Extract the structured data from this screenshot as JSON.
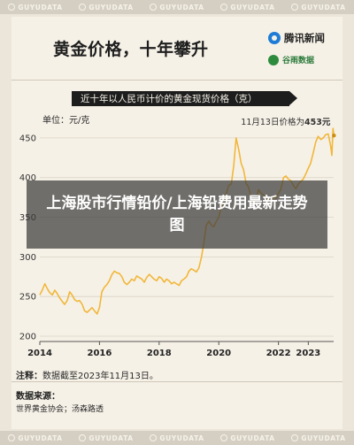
{
  "watermark": {
    "text": "GUYUDATA",
    "repeat": 5
  },
  "header": {
    "title": "黄金价格，十年攀升",
    "logo_primary": "腾讯新闻",
    "logo_secondary": "谷雨数据"
  },
  "chart_data": {
    "type": "line",
    "title": "近十年以人民币计价的黄金现货价格（克）",
    "ylabel": "单位：元/克",
    "xlabel": "",
    "ylim": [
      200,
      480
    ],
    "xlim": [
      2014.0,
      2023.85
    ],
    "yticks": [
      200,
      250,
      300,
      350,
      400,
      450
    ],
    "xticks": [
      {
        "x": 2014,
        "label": "2014"
      },
      {
        "x": 2016,
        "label": "2016"
      },
      {
        "x": 2018,
        "label": "2018"
      },
      {
        "x": 2020,
        "label": "2020"
      },
      {
        "x": 2022,
        "label": "2022"
      },
      {
        "x": 2023,
        "label": "2023"
      }
    ],
    "grid": true,
    "line_color": "#f1b73a",
    "annotation": {
      "x": 2023.86,
      "y": 453,
      "label": "11月13日价格为",
      "value": "453元"
    },
    "series": [
      {
        "values": [
          [
            2014.0,
            252
          ],
          [
            2014.08,
            258
          ],
          [
            2014.17,
            266
          ],
          [
            2014.25,
            260
          ],
          [
            2014.33,
            255
          ],
          [
            2014.42,
            252
          ],
          [
            2014.5,
            258
          ],
          [
            2014.58,
            254
          ],
          [
            2014.67,
            248
          ],
          [
            2014.75,
            244
          ],
          [
            2014.83,
            240
          ],
          [
            2014.92,
            245
          ],
          [
            2015.0,
            256
          ],
          [
            2015.08,
            252
          ],
          [
            2015.17,
            246
          ],
          [
            2015.25,
            244
          ],
          [
            2015.33,
            245
          ],
          [
            2015.42,
            240
          ],
          [
            2015.5,
            232
          ],
          [
            2015.58,
            230
          ],
          [
            2015.67,
            233
          ],
          [
            2015.75,
            236
          ],
          [
            2015.83,
            232
          ],
          [
            2015.92,
            228
          ],
          [
            2016.0,
            236
          ],
          [
            2016.08,
            256
          ],
          [
            2016.17,
            262
          ],
          [
            2016.25,
            265
          ],
          [
            2016.33,
            270
          ],
          [
            2016.42,
            278
          ],
          [
            2016.5,
            282
          ],
          [
            2016.58,
            280
          ],
          [
            2016.67,
            279
          ],
          [
            2016.75,
            275
          ],
          [
            2016.83,
            268
          ],
          [
            2016.92,
            265
          ],
          [
            2017.0,
            268
          ],
          [
            2017.08,
            272
          ],
          [
            2017.17,
            270
          ],
          [
            2017.25,
            276
          ],
          [
            2017.33,
            274
          ],
          [
            2017.42,
            272
          ],
          [
            2017.5,
            268
          ],
          [
            2017.58,
            274
          ],
          [
            2017.67,
            278
          ],
          [
            2017.75,
            275
          ],
          [
            2017.83,
            272
          ],
          [
            2017.92,
            270
          ],
          [
            2018.0,
            275
          ],
          [
            2018.08,
            273
          ],
          [
            2018.17,
            268
          ],
          [
            2018.25,
            272
          ],
          [
            2018.33,
            270
          ],
          [
            2018.42,
            266
          ],
          [
            2018.5,
            268
          ],
          [
            2018.58,
            266
          ],
          [
            2018.67,
            264
          ],
          [
            2018.75,
            270
          ],
          [
            2018.83,
            272
          ],
          [
            2018.92,
            275
          ],
          [
            2019.0,
            282
          ],
          [
            2019.08,
            285
          ],
          [
            2019.17,
            283
          ],
          [
            2019.25,
            281
          ],
          [
            2019.33,
            286
          ],
          [
            2019.42,
            300
          ],
          [
            2019.5,
            318
          ],
          [
            2019.58,
            340
          ],
          [
            2019.67,
            345
          ],
          [
            2019.75,
            340
          ],
          [
            2019.83,
            338
          ],
          [
            2019.92,
            345
          ],
          [
            2020.0,
            350
          ],
          [
            2020.08,
            362
          ],
          [
            2020.17,
            368
          ],
          [
            2020.25,
            380
          ],
          [
            2020.33,
            390
          ],
          [
            2020.42,
            392
          ],
          [
            2020.5,
            415
          ],
          [
            2020.58,
            450
          ],
          [
            2020.67,
            435
          ],
          [
            2020.75,
            418
          ],
          [
            2020.83,
            410
          ],
          [
            2020.92,
            392
          ],
          [
            2021.0,
            388
          ],
          [
            2021.08,
            375
          ],
          [
            2021.17,
            365
          ],
          [
            2021.25,
            372
          ],
          [
            2021.33,
            385
          ],
          [
            2021.42,
            380
          ],
          [
            2021.5,
            378
          ],
          [
            2021.58,
            375
          ],
          [
            2021.67,
            372
          ],
          [
            2021.75,
            370
          ],
          [
            2021.83,
            376
          ],
          [
            2021.92,
            374
          ],
          [
            2022.0,
            380
          ],
          [
            2022.08,
            385
          ],
          [
            2022.17,
            400
          ],
          [
            2022.25,
            402
          ],
          [
            2022.33,
            398
          ],
          [
            2022.42,
            396
          ],
          [
            2022.5,
            390
          ],
          [
            2022.58,
            386
          ],
          [
            2022.67,
            392
          ],
          [
            2022.75,
            395
          ],
          [
            2022.83,
            398
          ],
          [
            2022.92,
            405
          ],
          [
            2023.0,
            412
          ],
          [
            2023.08,
            418
          ],
          [
            2023.17,
            432
          ],
          [
            2023.25,
            445
          ],
          [
            2023.33,
            452
          ],
          [
            2023.42,
            448
          ],
          [
            2023.5,
            450
          ],
          [
            2023.58,
            454
          ],
          [
            2023.67,
            455
          ],
          [
            2023.75,
            440
          ],
          [
            2023.79,
            428
          ],
          [
            2023.83,
            462
          ],
          [
            2023.86,
            453
          ]
        ]
      }
    ]
  },
  "note": {
    "label": "注释：",
    "text": "数据截至2023年11月13日。"
  },
  "source": {
    "label": "数据来源：",
    "text": "世界黄金协会；汤森路透"
  },
  "overlay": {
    "text": "上海股市行情铅价/上海铅费用最新走势图"
  }
}
